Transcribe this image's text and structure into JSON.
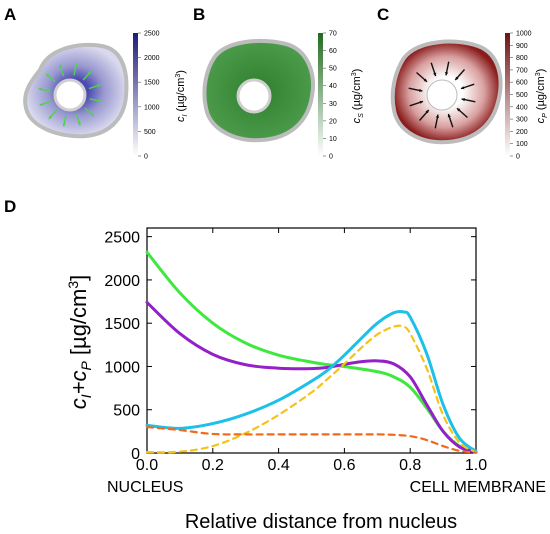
{
  "panels": {
    "A": {
      "letter": "A",
      "colorbar": {
        "ticks": [
          "0",
          "500",
          "1000",
          "1500",
          "2000",
          "2500"
        ],
        "tick_values": [
          0,
          500,
          1000,
          1500,
          2000,
          2500
        ],
        "max": 2500,
        "label_symbol": "c",
        "label_sub": "I",
        "label_units": " (µg/cm",
        "label_sup": "3",
        "label_close": ")",
        "color_high": "#1c1c78",
        "color_low": "#ffffff"
      },
      "arrow_color": "#4fd24f",
      "cell_color": "#8c8cc8"
    },
    "B": {
      "letter": "B",
      "colorbar": {
        "ticks": [
          "0",
          "10",
          "20",
          "30",
          "40",
          "50",
          "60",
          "70"
        ],
        "tick_values": [
          0,
          10,
          20,
          30,
          40,
          50,
          60,
          70
        ],
        "max": 70,
        "label_symbol": "c",
        "label_sub": "S",
        "label_units": " (µg/cm",
        "label_sup": "3",
        "label_close": ")",
        "color_high": "#1f6b1f",
        "color_low": "#ffffff"
      },
      "cell_color": "#3f8f3f"
    },
    "C": {
      "letter": "C",
      "colorbar": {
        "ticks": [
          "0",
          "100",
          "200",
          "300",
          "400",
          "500",
          "600",
          "700",
          "800",
          "900",
          "1000"
        ],
        "tick_values": [
          0,
          100,
          200,
          300,
          400,
          500,
          600,
          700,
          800,
          900,
          1000
        ],
        "max": 1000,
        "label_symbol": "c",
        "label_sub": "P",
        "label_units": " (µg/cm",
        "label_sup": "3",
        "label_close": ")",
        "color_high": "#6e1414",
        "color_low": "#ffffff"
      },
      "arrow_color": "#111111",
      "cell_color": "#8c1e1e"
    }
  },
  "chart_data": {
    "type": "line",
    "panel_letter": "D",
    "xlabel": "Relative distance from nucleus",
    "ylabel_parts": {
      "c": "c",
      "sub_i": "I",
      "plus": "+c",
      "sub_p": "P",
      "units": " [µg/cm",
      "sup": "3",
      "close": "]"
    },
    "x_left_label": "NUCLEUS",
    "x_right_label": "CELL MEMBRANE",
    "xlim": [
      0,
      1
    ],
    "ylim": [
      0,
      2600
    ],
    "xticks": [
      0.0,
      0.2,
      0.4,
      0.6,
      0.8,
      1.0
    ],
    "xtick_labels": [
      "0.0",
      "0.2",
      "0.4",
      "0.6",
      "0.8",
      "1.0"
    ],
    "yticks": [
      0,
      500,
      1000,
      1500,
      2000,
      2500
    ],
    "ytick_labels": [
      "0",
      "500",
      "1000",
      "1500",
      "2000",
      "2500"
    ],
    "grid": false,
    "series": [
      {
        "color": "#3ee83e",
        "dash": false,
        "x": [
          0,
          0.1,
          0.2,
          0.3,
          0.4,
          0.5,
          0.55,
          0.6,
          0.7,
          0.75,
          0.8,
          0.85,
          0.9,
          0.95,
          1.0
        ],
        "y": [
          2320,
          1850,
          1500,
          1270,
          1130,
          1050,
          1020,
          1000,
          940,
          880,
          760,
          520,
          250,
          80,
          15
        ]
      },
      {
        "color": "#9420c8",
        "dash": false,
        "x": [
          0,
          0.1,
          0.2,
          0.3,
          0.4,
          0.5,
          0.55,
          0.6,
          0.65,
          0.7,
          0.75,
          0.8,
          0.85,
          0.9,
          0.95,
          1.0
        ],
        "y": [
          1740,
          1380,
          1140,
          1020,
          980,
          975,
          990,
          1025,
          1055,
          1065,
          1030,
          880,
          560,
          250,
          70,
          10
        ]
      },
      {
        "color": "#1cc0e8",
        "dash": false,
        "x": [
          0,
          0.1,
          0.2,
          0.3,
          0.4,
          0.5,
          0.55,
          0.6,
          0.65,
          0.7,
          0.75,
          0.78,
          0.8,
          0.85,
          0.9,
          0.95,
          1.0
        ],
        "y": [
          320,
          285,
          340,
          450,
          610,
          830,
          960,
          1130,
          1320,
          1500,
          1620,
          1630,
          1570,
          1150,
          560,
          170,
          20
        ]
      },
      {
        "color": "#f5c21a",
        "dash": true,
        "x": [
          0,
          0.1,
          0.2,
          0.3,
          0.4,
          0.5,
          0.55,
          0.6,
          0.65,
          0.7,
          0.75,
          0.78,
          0.8,
          0.85,
          0.9,
          0.95,
          1.0
        ],
        "y": [
          10,
          15,
          80,
          230,
          440,
          700,
          860,
          1030,
          1210,
          1370,
          1460,
          1460,
          1380,
          980,
          440,
          120,
          10
        ]
      },
      {
        "color": "#f06a1a",
        "dash": true,
        "x": [
          0,
          0.1,
          0.2,
          0.3,
          0.4,
          0.5,
          0.6,
          0.7,
          0.75,
          0.8,
          0.85,
          0.9,
          0.95,
          1.0
        ],
        "y": [
          300,
          265,
          220,
          215,
          215,
          215,
          215,
          215,
          210,
          195,
          150,
          80,
          25,
          5
        ]
      }
    ]
  }
}
